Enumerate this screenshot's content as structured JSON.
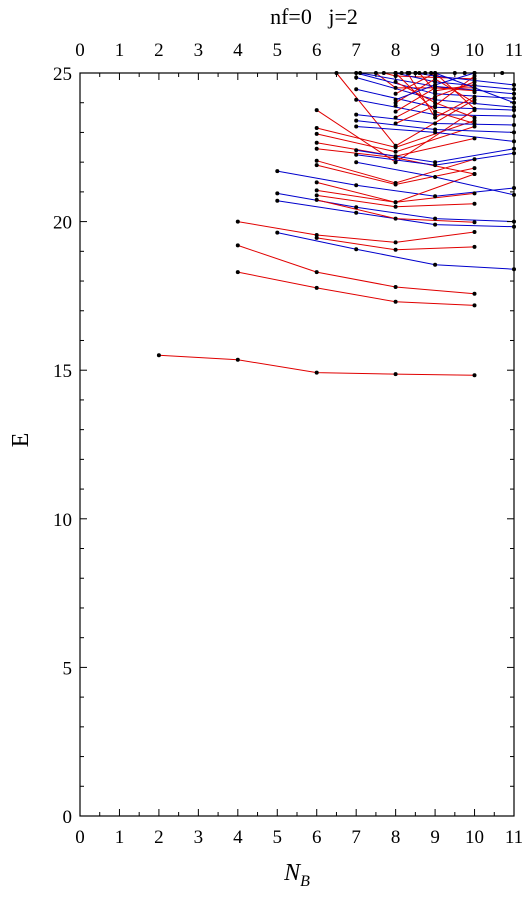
{
  "chart_data": {
    "type": "line",
    "title": "nf=0   j=2",
    "xlabel": "N",
    "xlabel_subscript": "B",
    "ylabel": "E",
    "xlim": [
      0,
      11
    ],
    "ylim": [
      0,
      25
    ],
    "x_ticks": [
      0,
      1,
      2,
      3,
      4,
      5,
      6,
      7,
      8,
      9,
      10,
      11
    ],
    "y_ticks": [
      0,
      5,
      10,
      15,
      20,
      25
    ],
    "grid": false,
    "legend": "none",
    "colors": {
      "red": "#e00000",
      "blue": "#0000cc",
      "point": "#000000",
      "frame": "#000000"
    },
    "series": [
      {
        "color": "red",
        "points": [
          [
            2,
            15.5
          ],
          [
            4,
            15.35
          ],
          [
            6,
            14.92
          ],
          [
            8,
            14.87
          ],
          [
            10,
            14.83
          ]
        ]
      },
      {
        "color": "red",
        "points": [
          [
            4,
            18.3
          ],
          [
            6,
            17.77
          ],
          [
            8,
            17.3
          ],
          [
            10,
            17.18
          ]
        ]
      },
      {
        "color": "red",
        "points": [
          [
            4,
            19.2
          ],
          [
            6,
            18.3
          ],
          [
            8,
            17.8
          ],
          [
            10,
            17.57
          ]
        ]
      },
      {
        "color": "red",
        "points": [
          [
            4,
            20.0
          ],
          [
            6,
            19.55
          ],
          [
            8,
            19.3
          ],
          [
            10,
            19.65
          ]
        ]
      },
      {
        "color": "red",
        "points": [
          [
            6,
            19.45
          ],
          [
            8,
            19.05
          ],
          [
            10,
            19.15
          ]
        ]
      },
      {
        "color": "blue",
        "points": [
          [
            5,
            19.63
          ],
          [
            7,
            19.07
          ],
          [
            9,
            18.55
          ],
          [
            11,
            18.4
          ]
        ]
      },
      {
        "color": "blue",
        "points": [
          [
            5,
            20.7
          ],
          [
            7,
            20.3
          ],
          [
            9,
            19.9
          ],
          [
            11,
            19.83
          ]
        ]
      },
      {
        "color": "blue",
        "points": [
          [
            5,
            20.95
          ],
          [
            7,
            20.48
          ],
          [
            9,
            20.1
          ],
          [
            11,
            20.0
          ]
        ]
      },
      {
        "color": "blue",
        "points": [
          [
            5,
            21.7
          ],
          [
            7,
            21.22
          ],
          [
            9,
            20.85
          ],
          [
            11,
            21.13
          ]
        ]
      },
      {
        "color": "red",
        "points": [
          [
            6,
            20.73
          ],
          [
            8,
            20.1
          ],
          [
            10,
            19.98
          ]
        ]
      },
      {
        "color": "red",
        "points": [
          [
            6,
            20.88
          ],
          [
            8,
            20.5
          ],
          [
            10,
            20.6
          ]
        ]
      },
      {
        "color": "red",
        "points": [
          [
            6,
            21.05
          ],
          [
            8,
            20.65
          ],
          [
            10,
            20.95
          ]
        ]
      },
      {
        "color": "red",
        "points": [
          [
            6,
            21.32
          ],
          [
            8,
            20.65
          ],
          [
            10,
            21.6
          ]
        ]
      },
      {
        "color": "red",
        "points": [
          [
            6,
            21.9
          ],
          [
            8,
            21.25
          ],
          [
            10,
            21.8
          ]
        ]
      },
      {
        "color": "red",
        "points": [
          [
            6,
            22.05
          ],
          [
            8,
            21.3
          ],
          [
            10,
            22.1
          ]
        ]
      },
      {
        "color": "red",
        "points": [
          [
            6,
            22.45
          ],
          [
            8,
            22.15
          ],
          [
            10,
            21.6
          ]
        ]
      },
      {
        "color": "red",
        "points": [
          [
            6,
            22.65
          ],
          [
            8,
            22.2
          ],
          [
            10,
            22.8
          ]
        ]
      },
      {
        "color": "red",
        "points": [
          [
            6,
            22.95
          ],
          [
            8,
            22.35
          ],
          [
            10,
            23.2
          ]
        ]
      },
      {
        "color": "red",
        "points": [
          [
            6,
            23.15
          ],
          [
            8,
            22.5
          ],
          [
            10,
            23.4
          ]
        ]
      },
      {
        "color": "red",
        "points": [
          [
            6,
            23.75
          ],
          [
            8,
            22.0
          ],
          [
            10,
            23.75
          ]
        ]
      },
      {
        "color": "red",
        "points": [
          [
            6.5,
            25.0
          ],
          [
            8,
            22.55
          ],
          [
            10,
            24.1
          ]
        ]
      },
      {
        "color": "red",
        "points": [
          [
            7.5,
            25.0
          ],
          [
            8,
            24.5
          ],
          [
            10,
            24.5
          ]
        ]
      },
      {
        "color": "red",
        "points": [
          [
            7.7,
            25.0
          ],
          [
            8,
            24.9
          ],
          [
            10,
            24.8
          ]
        ]
      },
      {
        "color": "blue",
        "points": [
          [
            7,
            22.0
          ],
          [
            9,
            21.5
          ],
          [
            11,
            20.9
          ]
        ]
      },
      {
        "color": "blue",
        "points": [
          [
            7,
            22.25
          ],
          [
            9,
            21.9
          ],
          [
            11,
            22.3
          ]
        ]
      },
      {
        "color": "blue",
        "points": [
          [
            7,
            22.4
          ],
          [
            9,
            22.0
          ],
          [
            11,
            22.45
          ]
        ]
      },
      {
        "color": "blue",
        "points": [
          [
            7,
            23.2
          ],
          [
            9,
            23.0
          ],
          [
            11,
            22.7
          ]
        ]
      },
      {
        "color": "blue",
        "points": [
          [
            7,
            23.4
          ],
          [
            9,
            23.1
          ],
          [
            11,
            23.0
          ]
        ]
      },
      {
        "color": "blue",
        "points": [
          [
            7,
            23.6
          ],
          [
            9,
            23.3
          ],
          [
            11,
            23.25
          ]
        ]
      },
      {
        "color": "blue",
        "points": [
          [
            7,
            24.1
          ],
          [
            9,
            23.6
          ],
          [
            11,
            23.55
          ]
        ]
      },
      {
        "color": "blue",
        "points": [
          [
            7,
            24.45
          ],
          [
            9,
            23.85
          ],
          [
            11,
            23.75
          ]
        ]
      },
      {
        "color": "blue",
        "points": [
          [
            7,
            24.85
          ],
          [
            9,
            24.1
          ],
          [
            11,
            23.85
          ]
        ]
      },
      {
        "color": "blue",
        "points": [
          [
            7,
            25.0
          ],
          [
            9,
            24.3
          ],
          [
            11,
            24.15
          ]
        ]
      },
      {
        "color": "blue",
        "points": [
          [
            7.1,
            25.0
          ],
          [
            9,
            24.55
          ],
          [
            11,
            24.3
          ]
        ]
      },
      {
        "color": "blue",
        "points": [
          [
            8,
            25.0
          ],
          [
            9,
            24.7
          ],
          [
            11,
            24.45
          ]
        ]
      },
      {
        "color": "red",
        "points": [
          [
            8,
            23.3
          ],
          [
            9,
            23.9
          ],
          [
            10,
            24.9
          ]
        ]
      },
      {
        "color": "red",
        "points": [
          [
            8,
            23.5
          ],
          [
            9,
            24.2
          ],
          [
            10,
            24.7
          ]
        ]
      },
      {
        "color": "red",
        "points": [
          [
            8,
            23.7
          ],
          [
            9,
            24.5
          ],
          [
            10,
            24.4
          ]
        ]
      },
      {
        "color": "red",
        "points": [
          [
            8,
            24.0
          ],
          [
            9,
            24.8
          ],
          [
            10,
            24.0
          ]
        ]
      },
      {
        "color": "red",
        "points": [
          [
            8,
            24.3
          ],
          [
            9,
            25.0
          ],
          [
            10,
            23.8
          ]
        ]
      },
      {
        "color": "red",
        "points": [
          [
            8,
            24.7
          ],
          [
            9,
            24.0
          ],
          [
            10,
            23.5
          ]
        ]
      },
      {
        "color": "red",
        "points": [
          [
            8,
            25.0
          ],
          [
            9,
            23.7
          ],
          [
            10,
            23.3
          ]
        ]
      },
      {
        "color": "red",
        "points": [
          [
            8.3,
            25.0
          ],
          [
            9,
            23.5
          ],
          [
            10,
            24.2
          ]
        ]
      },
      {
        "color": "red",
        "points": [
          [
            8.6,
            25.0
          ],
          [
            9,
            24.4
          ],
          [
            10,
            24.6
          ]
        ]
      },
      {
        "color": "blue",
        "points": [
          [
            8,
            24.1
          ],
          [
            9,
            24.6
          ],
          [
            10,
            25.0
          ]
        ]
      },
      {
        "color": "blue",
        "points": [
          [
            8.5,
            25.0
          ],
          [
            9,
            24.9
          ],
          [
            11,
            24.6
          ]
        ]
      },
      {
        "color": "blue",
        "points": [
          [
            9,
            25.0
          ],
          [
            11,
            24.0
          ]
        ]
      }
    ],
    "extra_points": [
      [
        8,
        25.0
      ],
      [
        8.15,
        25.0
      ],
      [
        8.35,
        25.0
      ],
      [
        8.5,
        25.0
      ],
      [
        8.75,
        25.0
      ],
      [
        8.9,
        25.0
      ],
      [
        9.5,
        25.0
      ],
      [
        9.75,
        25.0
      ],
      [
        10,
        25.0
      ],
      [
        10.7,
        25.0
      ],
      [
        9,
        24.35
      ],
      [
        9,
        24.15
      ],
      [
        10,
        24.35
      ],
      [
        8,
        23.9
      ]
    ]
  }
}
